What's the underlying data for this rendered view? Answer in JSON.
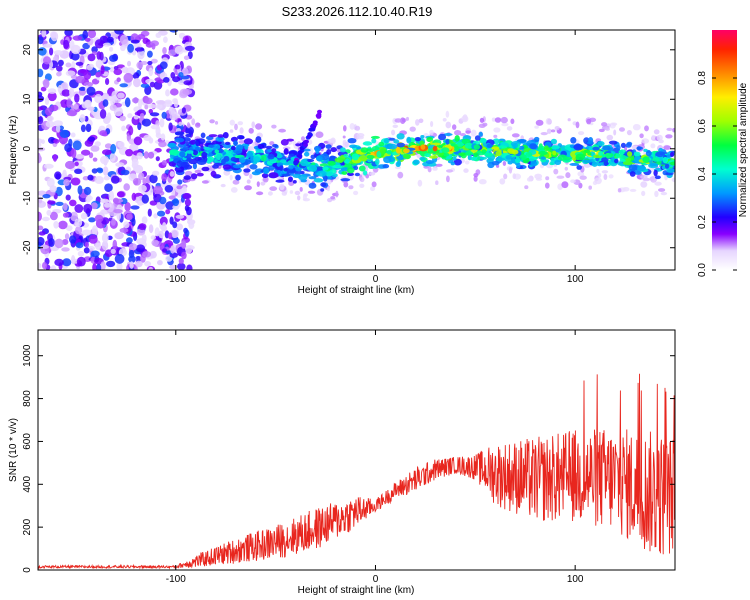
{
  "chart_data": [
    {
      "type": "heatmap",
      "title": "S233.2026.112.10.40.R19",
      "xlabel": "Height of straight line (km)",
      "ylabel": "Frequency (Hz)",
      "xlim": [
        -169,
        150
      ],
      "ylim": [
        -24.5,
        24
      ],
      "xticks": [
        -100,
        0,
        100
      ],
      "yticks": [
        -20,
        -10,
        0,
        10,
        20
      ],
      "colorbar": {
        "label": "Normalized spectral amplitude",
        "range": [
          0,
          1
        ],
        "ticks": [
          "0.0",
          "0.2",
          "0.4",
          "0.6",
          "0.8"
        ],
        "tick_values": [
          0.0,
          0.2,
          0.4,
          0.6,
          0.8
        ]
      },
      "ridge": {
        "description_points_x": [
          -100,
          -80,
          -60,
          -40,
          -25,
          -10,
          0,
          20,
          50,
          80,
          110,
          150
        ],
        "frequency_hz": [
          -1,
          -1,
          -2,
          -3,
          -4,
          -2,
          -1,
          0,
          0,
          -1,
          -1,
          -3
        ],
        "peak_amplitude": [
          0.45,
          0.4,
          0.45,
          0.45,
          0.55,
          0.7,
          0.8,
          0.95,
          0.75,
          0.7,
          0.7,
          0.6
        ]
      }
    },
    {
      "type": "line",
      "xlabel": "Height of straight line (km)",
      "ylabel": "SNR (10 * v/v)",
      "xlim": [
        -169,
        150
      ],
      "ylim": [
        0,
        1120
      ],
      "xticks": [
        -100,
        0,
        100
      ],
      "yticks": [
        0,
        200,
        400,
        600,
        800,
        1000
      ],
      "series": [
        {
          "name": "SNR",
          "color": "#e8261e",
          "envelope_x": [
            -169,
            -100,
            -90,
            -70,
            -50,
            -30,
            -10,
            0,
            10,
            20,
            30,
            40,
            50,
            60,
            80,
            100,
            120,
            140,
            150
          ],
          "envelope_mean": [
            15,
            15,
            40,
            90,
            130,
            190,
            270,
            300,
            370,
            420,
            470,
            490,
            480,
            450,
            420,
            440,
            420,
            350,
            350
          ],
          "envelope_spread": [
            6,
            6,
            30,
            60,
            80,
            100,
            80,
            30,
            40,
            60,
            50,
            40,
            60,
            150,
            200,
            220,
            250,
            300,
            280
          ]
        }
      ]
    }
  ]
}
